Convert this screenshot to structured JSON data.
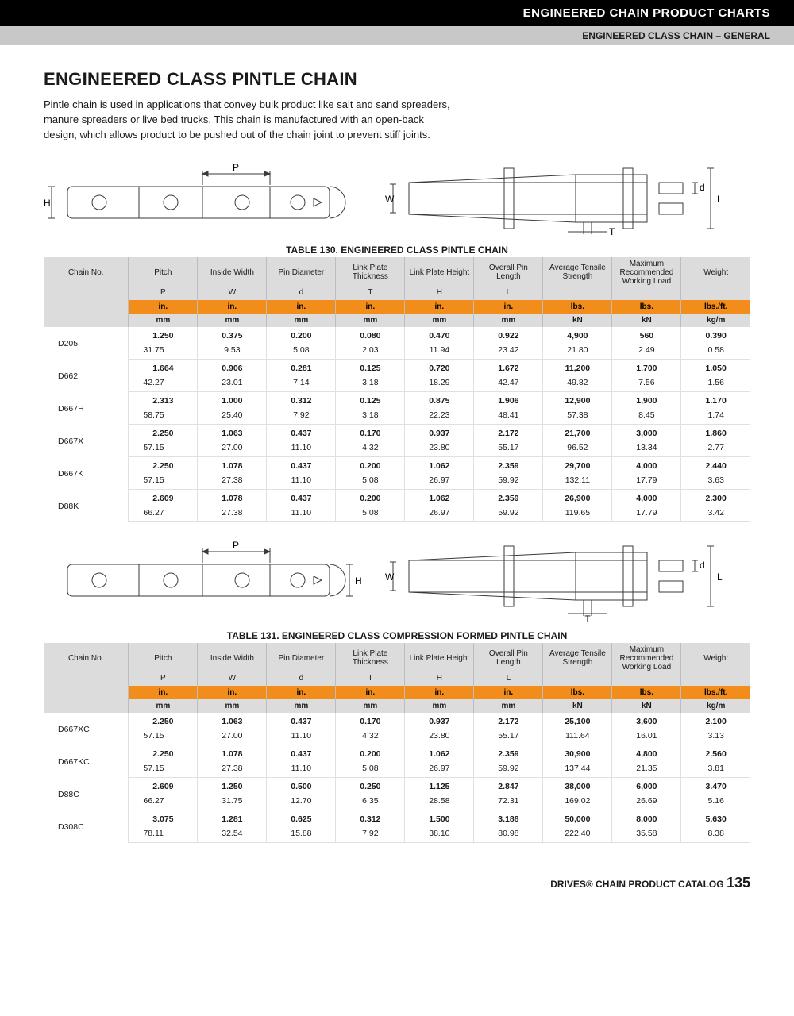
{
  "header": {
    "black": "ENGINEERED CHAIN PRODUCT CHARTS",
    "grey": "ENGINEERED CLASS CHAIN – GENERAL"
  },
  "title": "ENGINEERED CLASS PINTLE CHAIN",
  "intro": "Pintle chain is used in applications that convey bulk product like salt and sand spreaders, manure spreaders or live bed trucks. This chain is manufactured with an open-back design, which allows product to be pushed out of the chain joint to prevent stiff joints.",
  "diagram_labels": {
    "P": "P",
    "H": "H",
    "W": "W",
    "T": "T",
    "d": "d",
    "L": "L"
  },
  "columns": [
    {
      "name": "Chain No.",
      "sym": ""
    },
    {
      "name": "Pitch",
      "sym": "P",
      "u1": "in.",
      "u2": "mm"
    },
    {
      "name": "Inside Width",
      "sym": "W",
      "u1": "in.",
      "u2": "mm"
    },
    {
      "name": "Pin Diameter",
      "sym": "d",
      "u1": "in.",
      "u2": "mm"
    },
    {
      "name": "Link Plate Thickness",
      "sym": "T",
      "u1": "in.",
      "u2": "mm"
    },
    {
      "name": "Link Plate Height",
      "sym": "H",
      "u1": "in.",
      "u2": "mm"
    },
    {
      "name": "Overall Pin Length",
      "sym": "L",
      "u1": "in.",
      "u2": "mm"
    },
    {
      "name": "Average Tensile Strength",
      "sym": "",
      "u1": "lbs.",
      "u2": "kN"
    },
    {
      "name": "Maximum Recommended Working Load",
      "sym": "",
      "u1": "lbs.",
      "u2": "kN"
    },
    {
      "name": "Weight",
      "sym": "",
      "u1": "lbs./ft.",
      "u2": "kg/m"
    }
  ],
  "table130": {
    "caption": "TABLE 130. ENGINEERED CLASS PINTLE CHAIN",
    "rows": [
      {
        "id": "D205",
        "v1": [
          "1.250",
          "0.375",
          "0.200",
          "0.080",
          "0.470",
          "0.922",
          "4,900",
          "560",
          "0.390"
        ],
        "v2": [
          "31.75",
          "9.53",
          "5.08",
          "2.03",
          "11.94",
          "23.42",
          "21.80",
          "2.49",
          "0.58"
        ]
      },
      {
        "id": "D662",
        "v1": [
          "1.664",
          "0.906",
          "0.281",
          "0.125",
          "0.720",
          "1.672",
          "11,200",
          "1,700",
          "1.050"
        ],
        "v2": [
          "42.27",
          "23.01",
          "7.14",
          "3.18",
          "18.29",
          "42.47",
          "49.82",
          "7.56",
          "1.56"
        ]
      },
      {
        "id": "D667H",
        "v1": [
          "2.313",
          "1.000",
          "0.312",
          "0.125",
          "0.875",
          "1.906",
          "12,900",
          "1,900",
          "1.170"
        ],
        "v2": [
          "58.75",
          "25.40",
          "7.92",
          "3.18",
          "22.23",
          "48.41",
          "57.38",
          "8.45",
          "1.74"
        ]
      },
      {
        "id": "D667X",
        "v1": [
          "2.250",
          "1.063",
          "0.437",
          "0.170",
          "0.937",
          "2.172",
          "21,700",
          "3,000",
          "1.860"
        ],
        "v2": [
          "57.15",
          "27.00",
          "11.10",
          "4.32",
          "23.80",
          "55.17",
          "96.52",
          "13.34",
          "2.77"
        ]
      },
      {
        "id": "D667K",
        "v1": [
          "2.250",
          "1.078",
          "0.437",
          "0.200",
          "1.062",
          "2.359",
          "29,700",
          "4,000",
          "2.440"
        ],
        "v2": [
          "57.15",
          "27.38",
          "11.10",
          "5.08",
          "26.97",
          "59.92",
          "132.11",
          "17.79",
          "3.63"
        ]
      },
      {
        "id": "D88K",
        "v1": [
          "2.609",
          "1.078",
          "0.437",
          "0.200",
          "1.062",
          "2.359",
          "26,900",
          "4,000",
          "2.300"
        ],
        "v2": [
          "66.27",
          "27.38",
          "11.10",
          "5.08",
          "26.97",
          "59.92",
          "119.65",
          "17.79",
          "3.42"
        ]
      }
    ]
  },
  "table131": {
    "caption": "TABLE 131. ENGINEERED CLASS COMPRESSION FORMED PINTLE CHAIN",
    "rows": [
      {
        "id": "D667XC",
        "v1": [
          "2.250",
          "1.063",
          "0.437",
          "0.170",
          "0.937",
          "2.172",
          "25,100",
          "3,600",
          "2.100"
        ],
        "v2": [
          "57.15",
          "27.00",
          "11.10",
          "4.32",
          "23.80",
          "55.17",
          "111.64",
          "16.01",
          "3.13"
        ]
      },
      {
        "id": "D667KC",
        "v1": [
          "2.250",
          "1.078",
          "0.437",
          "0.200",
          "1.062",
          "2.359",
          "30,900",
          "4,800",
          "2.560"
        ],
        "v2": [
          "57.15",
          "27.38",
          "11.10",
          "5.08",
          "26.97",
          "59.92",
          "137.44",
          "21.35",
          "3.81"
        ]
      },
      {
        "id": "D88C",
        "v1": [
          "2.609",
          "1.250",
          "0.500",
          "0.250",
          "1.125",
          "2.847",
          "38,000",
          "6,000",
          "3.470"
        ],
        "v2": [
          "66.27",
          "31.75",
          "12.70",
          "6.35",
          "28.58",
          "72.31",
          "169.02",
          "26.69",
          "5.16"
        ]
      },
      {
        "id": "D308C",
        "v1": [
          "3.075",
          "1.281",
          "0.625",
          "0.312",
          "1.500",
          "3.188",
          "50,000",
          "8,000",
          "5.630"
        ],
        "v2": [
          "78.11",
          "32.54",
          "15.88",
          "7.92",
          "38.10",
          "80.98",
          "222.40",
          "35.58",
          "8.38"
        ]
      }
    ]
  },
  "footer": {
    "text": "DRIVES® CHAIN PRODUCT CATALOG",
    "page": "135"
  },
  "style": {
    "orange": "#f28c1a",
    "grey_header": "#dcdcdc",
    "border": "#e0e0e0"
  }
}
